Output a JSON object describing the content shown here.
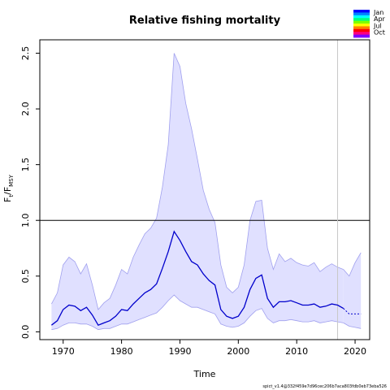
{
  "chart_data": {
    "type": "area",
    "title": "Relative fishing mortality",
    "xlabel": "Time",
    "ylabel_main": "F",
    "ylabel_main_sub": "t",
    "ylabel_sep": "/",
    "ylabel_ref": "F",
    "ylabel_ref_sub": "MSY",
    "footnote": "spict_v1.4@332f459e7d96cec206b7aca803fdb0eb73eba526",
    "xlim": [
      1966,
      2022.5
    ],
    "ylim": [
      -0.07,
      2.62
    ],
    "x_ticks": [
      1970,
      1980,
      1990,
      2000,
      2010,
      2020
    ],
    "y_ticks": [
      0.0,
      0.5,
      1.0,
      1.5,
      2.0,
      2.5
    ],
    "x_tick_labels": [
      "1970",
      "1980",
      "1990",
      "2000",
      "2010",
      "2020"
    ],
    "y_tick_labels": [
      "0.0",
      "0.5",
      "1.0",
      "1.5",
      "2.0",
      "2.5"
    ],
    "grid": false,
    "reference_line": 1.0,
    "vertical_marker": 2017,
    "colors": {
      "estimate": "#0000cc",
      "ci_fill": "#e0e0ff",
      "ci_line": "#a0a0ee",
      "reference": "#000000",
      "marker": "#c8c8c8"
    },
    "series": [
      {
        "role": "estimate",
        "x": [
          1968,
          1969,
          1970,
          1971,
          1972,
          1973,
          1974,
          1975,
          1976,
          1977,
          1978,
          1979,
          1980,
          1981,
          1982,
          1983,
          1984,
          1985,
          1986,
          1987,
          1988,
          1989,
          1990,
          1991,
          1992,
          1993,
          1994,
          1995,
          1996,
          1997,
          1998,
          1999,
          2000,
          2001,
          2002,
          2003,
          2004,
          2005,
          2006,
          2007,
          2008,
          2009,
          2010,
          2011,
          2012,
          2013,
          2014,
          2015,
          2016,
          2017,
          2018
        ],
        "values": [
          0.06,
          0.1,
          0.2,
          0.24,
          0.23,
          0.19,
          0.22,
          0.15,
          0.06,
          0.08,
          0.1,
          0.14,
          0.2,
          0.19,
          0.25,
          0.3,
          0.35,
          0.38,
          0.43,
          0.57,
          0.72,
          0.9,
          0.82,
          0.72,
          0.63,
          0.6,
          0.52,
          0.46,
          0.42,
          0.2,
          0.14,
          0.12,
          0.14,
          0.22,
          0.38,
          0.48,
          0.51,
          0.3,
          0.22,
          0.27,
          0.27,
          0.28,
          0.26,
          0.24,
          0.24,
          0.25,
          0.22,
          0.23,
          0.25,
          0.24,
          0.21
        ]
      },
      {
        "role": "ci_upper",
        "x": [
          1968,
          1969,
          1970,
          1971,
          1972,
          1973,
          1974,
          1975,
          1976,
          1977,
          1978,
          1979,
          1980,
          1981,
          1982,
          1983,
          1984,
          1985,
          1986,
          1987,
          1988,
          1989,
          1990,
          1991,
          1992,
          1993,
          1994,
          1995,
          1996,
          1997,
          1998,
          1999,
          2000,
          2001,
          2002,
          2003,
          2004,
          2005,
          2006,
          2007,
          2008,
          2009,
          2010,
          2011,
          2012,
          2013,
          2014,
          2015,
          2016,
          2017,
          2018
        ],
        "values": [
          0.25,
          0.35,
          0.6,
          0.67,
          0.63,
          0.52,
          0.61,
          0.42,
          0.2,
          0.26,
          0.3,
          0.42,
          0.56,
          0.52,
          0.67,
          0.78,
          0.88,
          0.93,
          1.02,
          1.3,
          1.68,
          2.5,
          2.38,
          2.05,
          1.82,
          1.55,
          1.27,
          1.1,
          0.98,
          0.6,
          0.4,
          0.35,
          0.4,
          0.6,
          1.0,
          1.17,
          1.18,
          0.75,
          0.56,
          0.7,
          0.63,
          0.66,
          0.62,
          0.6,
          0.59,
          0.62,
          0.54,
          0.58,
          0.61,
          0.58,
          0.56
        ]
      },
      {
        "role": "ci_lower",
        "x": [
          1968,
          1969,
          1970,
          1971,
          1972,
          1973,
          1974,
          1975,
          1976,
          1977,
          1978,
          1979,
          1980,
          1981,
          1982,
          1983,
          1984,
          1985,
          1986,
          1987,
          1988,
          1989,
          1990,
          1991,
          1992,
          1993,
          1994,
          1995,
          1996,
          1997,
          1998,
          1999,
          2000,
          2001,
          2002,
          2003,
          2004,
          2005,
          2006,
          2007,
          2008,
          2009,
          2010,
          2011,
          2012,
          2013,
          2014,
          2015,
          2016,
          2017,
          2018
        ],
        "values": [
          0.02,
          0.03,
          0.06,
          0.08,
          0.08,
          0.07,
          0.07,
          0.05,
          0.02,
          0.03,
          0.03,
          0.05,
          0.07,
          0.07,
          0.09,
          0.11,
          0.13,
          0.15,
          0.17,
          0.22,
          0.28,
          0.33,
          0.28,
          0.25,
          0.22,
          0.22,
          0.2,
          0.18,
          0.16,
          0.07,
          0.05,
          0.04,
          0.05,
          0.08,
          0.14,
          0.19,
          0.21,
          0.12,
          0.08,
          0.1,
          0.1,
          0.11,
          0.1,
          0.09,
          0.09,
          0.1,
          0.08,
          0.09,
          0.1,
          0.09,
          0.08
        ]
      },
      {
        "role": "forecast",
        "x": [
          2018,
          2019,
          2020,
          2021
        ],
        "values": [
          0.21,
          0.16,
          0.16,
          0.16
        ]
      },
      {
        "role": "forecast_ci_upper",
        "x": [
          2018,
          2019,
          2020,
          2021
        ],
        "values": [
          0.56,
          0.5,
          0.62,
          0.71
        ]
      },
      {
        "role": "forecast_ci_lower",
        "x": [
          2018,
          2019,
          2020,
          2021
        ],
        "values": [
          0.08,
          0.05,
          0.04,
          0.03
        ]
      }
    ],
    "legend": {
      "placement": "top-right",
      "entries": [
        "Jan",
        "Apr",
        "Jul",
        "Oct"
      ],
      "colors": [
        "#0000ff",
        "#0080ff",
        "#00ffff",
        "#00ff80",
        "#80ff00",
        "#ffff00",
        "#ff8000",
        "#ff0000",
        "#ff0080",
        "#8000ff"
      ]
    }
  }
}
